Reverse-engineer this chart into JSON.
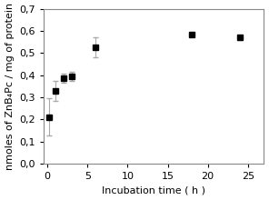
{
  "x": [
    0.25,
    1,
    2,
    3,
    6,
    18,
    24
  ],
  "y": [
    0.21,
    0.33,
    0.385,
    0.395,
    0.525,
    0.585,
    0.57
  ],
  "yerr": [
    0.085,
    0.045,
    0.02,
    0.02,
    0.045,
    0.0,
    0.01
  ],
  "xlabel": "Incubation time ( h )",
  "ylabel": "nmoles of ZnB₄Pc / mg of protein",
  "xlim": [
    -0.5,
    27
  ],
  "ylim": [
    0.0,
    0.7
  ],
  "xticks": [
    0,
    5,
    10,
    15,
    20,
    25
  ],
  "yticks": [
    0.0,
    0.1,
    0.2,
    0.3,
    0.4,
    0.5,
    0.6,
    0.7
  ],
  "marker_color": "black",
  "marker": "s",
  "markersize": 4,
  "capsize": 2.5,
  "ecolor": "#aaaaaa",
  "elinewidth": 0.8,
  "label_fontsize": 8,
  "tick_fontsize": 8
}
